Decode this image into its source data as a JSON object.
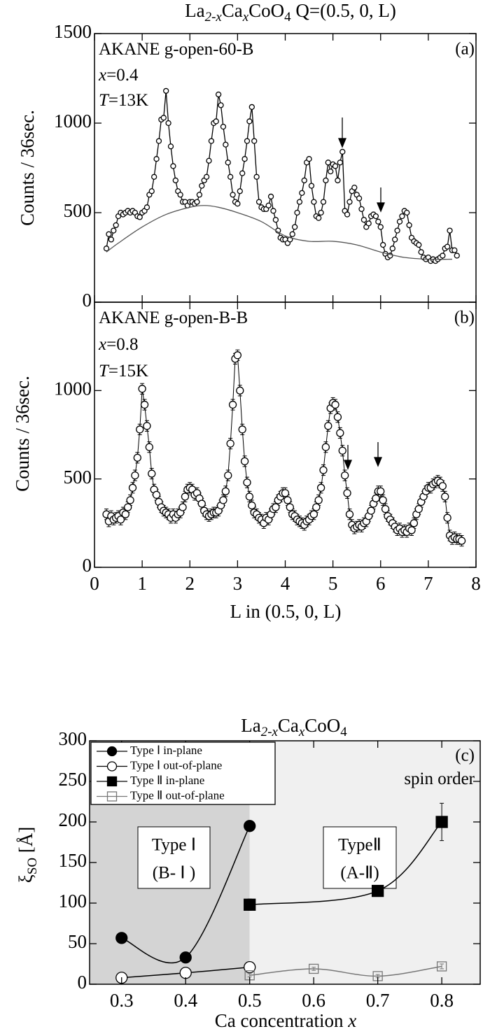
{
  "chart_data": [
    {
      "type": "line",
      "title": [
        "La",
        "2-x",
        "Ca",
        "x",
        "CoO",
        "4",
        " Q=(0.5, 0, L)"
      ],
      "ylabel": "Counts / 36sec.",
      "annotations": [
        "AKANE g-open-60-B",
        "x=0.4",
        "T=13K"
      ],
      "panel_label": "(a)",
      "xlim": [
        0,
        8
      ],
      "ylim": [
        0,
        1500
      ],
      "yticks": [
        0,
        500,
        1000,
        1500
      ],
      "series": [
        {
          "color": "#000000",
          "marker": "circle-open",
          "x": [
            0.25,
            0.3,
            0.35,
            0.4,
            0.45,
            0.5,
            0.55,
            0.6,
            0.65,
            0.7,
            0.75,
            0.8,
            0.85,
            0.9,
            0.95,
            1.0,
            1.05,
            1.1,
            1.15,
            1.2,
            1.25,
            1.3,
            1.35,
            1.4,
            1.45,
            1.5,
            1.55,
            1.6,
            1.65,
            1.7,
            1.75,
            1.8,
            1.85,
            1.9,
            1.95,
            2.0,
            2.05,
            2.1,
            2.15,
            2.2,
            2.25,
            2.3,
            2.35,
            2.4,
            2.45,
            2.5,
            2.55,
            2.6,
            2.65,
            2.7,
            2.75,
            2.8,
            2.85,
            2.9,
            2.95,
            3.0,
            3.05,
            3.1,
            3.15,
            3.2,
            3.25,
            3.3,
            3.35,
            3.4,
            3.45,
            3.5,
            3.55,
            3.6,
            3.65,
            3.7,
            3.75,
            3.8,
            3.85,
            3.9,
            3.95,
            4.0,
            4.05,
            4.1,
            4.15,
            4.2,
            4.25,
            4.3,
            4.35,
            4.4,
            4.45,
            4.5,
            4.55,
            4.6,
            4.65,
            4.7,
            4.75,
            4.8,
            4.85,
            4.9,
            4.95,
            5.0,
            5.05,
            5.1,
            5.15,
            5.2,
            5.25,
            5.3,
            5.35,
            5.4,
            5.45,
            5.5,
            5.55,
            5.6,
            5.65,
            5.7,
            5.75,
            5.8,
            5.85,
            5.9,
            5.95,
            6.0,
            6.05,
            6.1,
            6.15,
            6.2,
            6.25,
            6.3,
            6.35,
            6.4,
            6.45,
            6.5,
            6.55,
            6.6,
            6.65,
            6.7,
            6.75,
            6.8,
            6.85,
            6.9,
            6.95,
            7.0,
            7.05,
            7.1,
            7.15,
            7.2,
            7.25,
            7.3,
            7.35,
            7.4,
            7.45,
            7.5,
            7.55,
            7.6
          ],
          "values": [
            300,
            380,
            350,
            400,
            430,
            480,
            500,
            490,
            500,
            510,
            500,
            510,
            500,
            480,
            475,
            500,
            510,
            530,
            600,
            620,
            700,
            800,
            900,
            1020,
            1030,
            1180,
            1000,
            870,
            760,
            680,
            620,
            600,
            560,
            560,
            540,
            560,
            560,
            550,
            560,
            600,
            650,
            680,
            700,
            790,
            900,
            1000,
            1010,
            1160,
            1100,
            980,
            880,
            780,
            700,
            600,
            560,
            550,
            620,
            720,
            800,
            900,
            1010,
            1090,
            900,
            700,
            560,
            530,
            520,
            520,
            540,
            590,
            510,
            460,
            400,
            360,
            350,
            350,
            330,
            350,
            380,
            420,
            500,
            560,
            610,
            680,
            780,
            800,
            650,
            560,
            480,
            470,
            500,
            560,
            680,
            780,
            730,
            770,
            760,
            680,
            780,
            840,
            510,
            490,
            560,
            620,
            640,
            600,
            580,
            520,
            460,
            420,
            440,
            480,
            490,
            480,
            450,
            420,
            320,
            270,
            250,
            260,
            300,
            350,
            400,
            450,
            480,
            510,
            500,
            430,
            360,
            340,
            330,
            320,
            280,
            250,
            240,
            250,
            230,
            240,
            230,
            240,
            250,
            260,
            300,
            310,
            400,
            290,
            290,
            260
          ]
        },
        {
          "color": "#555555",
          "marker": "none",
          "smooth": true,
          "x": [
            0.25,
            0.5,
            1,
            1.5,
            2,
            2.3,
            2.6,
            3,
            3.5,
            4,
            4.5,
            5,
            5.5,
            6,
            6.5,
            7,
            7.5
          ],
          "values": [
            280,
            330,
            420,
            490,
            530,
            540,
            530,
            500,
            450,
            370,
            340,
            340,
            320,
            280,
            250,
            240,
            240
          ]
        }
      ]
    },
    {
      "type": "line",
      "ylabel": "Counts / 36sec.",
      "xlabel": "L in (0.5, 0, L)",
      "annotations": [
        "AKANE g-open-B-B",
        "x=0.8",
        "T=15K"
      ],
      "panel_label": "(b)",
      "xlim": [
        0,
        8
      ],
      "ylim": [
        0,
        1500
      ],
      "xticks": [
        0,
        1,
        2,
        3,
        4,
        5,
        6,
        7,
        8
      ],
      "yticks": [
        0,
        500,
        1000
      ],
      "series": [
        {
          "color": "#000000",
          "marker": "circle-open",
          "x": [
            0.25,
            0.3,
            0.35,
            0.4,
            0.45,
            0.5,
            0.55,
            0.6,
            0.65,
            0.7,
            0.75,
            0.8,
            0.85,
            0.9,
            0.95,
            1.0,
            1.05,
            1.1,
            1.15,
            1.2,
            1.25,
            1.3,
            1.35,
            1.4,
            1.45,
            1.5,
            1.55,
            1.6,
            1.65,
            1.7,
            1.75,
            1.8,
            1.85,
            1.9,
            1.95,
            2.0,
            2.05,
            2.1,
            2.15,
            2.2,
            2.25,
            2.3,
            2.35,
            2.4,
            2.45,
            2.5,
            2.55,
            2.6,
            2.65,
            2.7,
            2.75,
            2.8,
            2.85,
            2.9,
            2.95,
            3.0,
            3.05,
            3.1,
            3.15,
            3.2,
            3.25,
            3.3,
            3.35,
            3.4,
            3.45,
            3.5,
            3.55,
            3.6,
            3.65,
            3.7,
            3.75,
            3.8,
            3.85,
            3.9,
            3.95,
            4.0,
            4.05,
            4.1,
            4.15,
            4.2,
            4.25,
            4.3,
            4.35,
            4.4,
            4.45,
            4.5,
            4.55,
            4.6,
            4.65,
            4.7,
            4.75,
            4.8,
            4.85,
            4.9,
            4.95,
            5.0,
            5.05,
            5.1,
            5.15,
            5.2,
            5.25,
            5.3,
            5.35,
            5.4,
            5.45,
            5.5,
            5.55,
            5.6,
            5.65,
            5.7,
            5.75,
            5.8,
            5.85,
            5.9,
            5.95,
            6.0,
            6.05,
            6.1,
            6.15,
            6.2,
            6.25,
            6.3,
            6.35,
            6.4,
            6.45,
            6.5,
            6.55,
            6.6,
            6.65,
            6.7,
            6.75,
            6.8,
            6.85,
            6.9,
            6.95,
            7.0,
            7.05,
            7.1,
            7.15,
            7.2,
            7.25,
            7.3,
            7.35,
            7.4,
            7.45,
            7.5,
            7.55,
            7.6,
            7.65,
            7.7
          ],
          "values": [
            300,
            260,
            290,
            270,
            280,
            290,
            270,
            310,
            300,
            340,
            380,
            450,
            520,
            620,
            780,
            1010,
            920,
            800,
            680,
            530,
            440,
            410,
            370,
            340,
            320,
            310,
            300,
            280,
            300,
            280,
            300,
            310,
            340,
            400,
            440,
            450,
            440,
            410,
            420,
            390,
            360,
            320,
            300,
            290,
            300,
            310,
            310,
            320,
            350,
            380,
            430,
            520,
            700,
            920,
            1180,
            1200,
            1000,
            780,
            600,
            480,
            400,
            350,
            310,
            300,
            280,
            270,
            250,
            280,
            270,
            300,
            330,
            340,
            380,
            400,
            420,
            420,
            380,
            340,
            300,
            290,
            270,
            260,
            250,
            240,
            260,
            270,
            290,
            300,
            340,
            380,
            450,
            550,
            680,
            800,
            900,
            930,
            920,
            850,
            760,
            660,
            520,
            420,
            300,
            240,
            220,
            230,
            240,
            230,
            250,
            260,
            290,
            320,
            360,
            390,
            430,
            430,
            380,
            330,
            290,
            270,
            250,
            230,
            210,
            220,
            200,
            210,
            200,
            220,
            210,
            250,
            300,
            330,
            370,
            400,
            430,
            450,
            450,
            470,
            480,
            490,
            480,
            460,
            400,
            280,
            180,
            160,
            170,
            160,
            160,
            150
          ],
          "errors": [
            30,
            30,
            30,
            30,
            30,
            30,
            30,
            30,
            30,
            30,
            30,
            30,
            30,
            30,
            30,
            30,
            30,
            30,
            30,
            30,
            30,
            30,
            30,
            30,
            30,
            30,
            30,
            30,
            30,
            30,
            30,
            30,
            30,
            30,
            30,
            30,
            30,
            30,
            30,
            30,
            30,
            30,
            30,
            30,
            30,
            30,
            30,
            30,
            30,
            30,
            30,
            30,
            30,
            30,
            30,
            30,
            30,
            30,
            30,
            30,
            30,
            30,
            30,
            30,
            30,
            30,
            30,
            30,
            30,
            30,
            30,
            30,
            30,
            30,
            30,
            30,
            30,
            30,
            30,
            30,
            30,
            30,
            30,
            30,
            30,
            30,
            30,
            30,
            30,
            30,
            30,
            30,
            30,
            30,
            30,
            30,
            30,
            30,
            30,
            30,
            30,
            30,
            30,
            30,
            30,
            30,
            30,
            30,
            30,
            30,
            30,
            30,
            30,
            30,
            30,
            30,
            30,
            30,
            30,
            30,
            30,
            30,
            30,
            30,
            30,
            30,
            30,
            30,
            30,
            30,
            30,
            30,
            30,
            30,
            30,
            30,
            30,
            30,
            30,
            30,
            30,
            30,
            30,
            30,
            30,
            30,
            30,
            30,
            30,
            30
          ]
        }
      ]
    },
    {
      "type": "line",
      "title": [
        "La",
        "2-x",
        "Ca",
        "x",
        "CoO",
        "4"
      ],
      "ylabel": [
        "ξ",
        "SO",
        " [Å]"
      ],
      "xlabel": "Ca concentration x",
      "annotations": [
        "spin order"
      ],
      "panel_label": "(c)",
      "boxed_labels": [
        [
          "Type Ⅰ",
          "(B- Ⅰ )"
        ],
        [
          "TypeⅡ",
          "(A-Ⅱ)"
        ]
      ],
      "regions": [
        {
          "xlim": [
            0.25,
            0.5
          ],
          "color": "#d4d4d4"
        },
        {
          "xlim": [
            0.5,
            0.86
          ],
          "color": "#f0f0f0"
        }
      ],
      "xlim": [
        0.25,
        0.86
      ],
      "ylim": [
        0,
        300
      ],
      "xticks": [
        0.3,
        0.4,
        0.5,
        0.6,
        0.7,
        0.8
      ],
      "yticks": [
        0,
        50,
        100,
        150,
        200,
        250,
        300
      ],
      "legend": "upper left",
      "series": [
        {
          "name": "Type Ⅰ in-plane",
          "color": "#000000",
          "marker": "circle",
          "smooth": true,
          "x": [
            0.3,
            0.4,
            0.5
          ],
          "values": [
            57,
            33,
            195
          ],
          "errors": [
            6,
            3,
            3
          ]
        },
        {
          "name": "Type Ⅰ out-of-plane",
          "color": "#000000",
          "marker": "circle-open",
          "smooth": true,
          "x": [
            0.3,
            0.4,
            0.5
          ],
          "values": [
            8,
            14,
            21
          ]
        },
        {
          "name": "Type Ⅱ in-plane",
          "color": "#000000",
          "marker": "square",
          "smooth": true,
          "x": [
            0.5,
            0.7,
            0.8
          ],
          "values": [
            98,
            115,
            200
          ],
          "errors": [
            7,
            5,
            23
          ]
        },
        {
          "name": "Type Ⅱ out-of-plane",
          "color": "#777777",
          "marker": "square-open",
          "smooth": true,
          "x": [
            0.5,
            0.6,
            0.7,
            0.8
          ],
          "values": [
            11,
            19,
            10,
            22
          ],
          "errors": [
            2,
            2,
            2,
            3
          ]
        }
      ]
    }
  ]
}
